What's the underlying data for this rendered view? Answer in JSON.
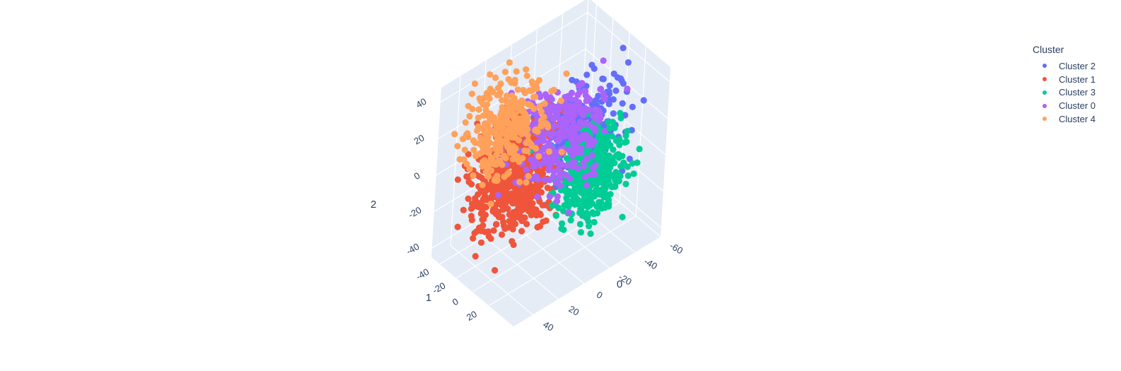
{
  "chart_data": {
    "type": "scatter",
    "subtype": "3d-scatter",
    "title": "",
    "legend": {
      "title": "Cluster",
      "placement": "top-right"
    },
    "axes": {
      "x": {
        "label": "0",
        "ticks": [
          "-60",
          "-40",
          "-20",
          "0",
          "20",
          "40"
        ],
        "range": [
          -60,
          55
        ]
      },
      "y": {
        "label": "1",
        "ticks": [
          "-40",
          "-20",
          "0",
          "20"
        ],
        "range": [
          -50,
          50
        ]
      },
      "z": {
        "label": "2",
        "ticks": [
          "-40",
          "-20",
          "0",
          "20",
          "40"
        ],
        "range": [
          -45,
          48
        ]
      }
    },
    "grid": true,
    "series": [
      {
        "name": "Cluster 2",
        "color": "#636efa",
        "center": [
          -22,
          5,
          12
        ],
        "spread": [
          16,
          12,
          12
        ],
        "count": 260
      },
      {
        "name": "Cluster 1",
        "color": "#ef553b",
        "center": [
          18,
          -12,
          -2
        ],
        "spread": [
          14,
          14,
          13
        ],
        "count": 620
      },
      {
        "name": "Cluster 3",
        "color": "#00cc96",
        "center": [
          -20,
          22,
          -2
        ],
        "spread": [
          12,
          12,
          12
        ],
        "count": 420
      },
      {
        "name": "Cluster 0",
        "color": "#ab63fa",
        "center": [
          -10,
          0,
          14
        ],
        "spread": [
          14,
          14,
          12
        ],
        "count": 300
      },
      {
        "name": "Cluster 4",
        "color": "#ffa15a",
        "center": [
          18,
          -26,
          20
        ],
        "spread": [
          14,
          12,
          13
        ],
        "count": 300
      }
    ]
  }
}
